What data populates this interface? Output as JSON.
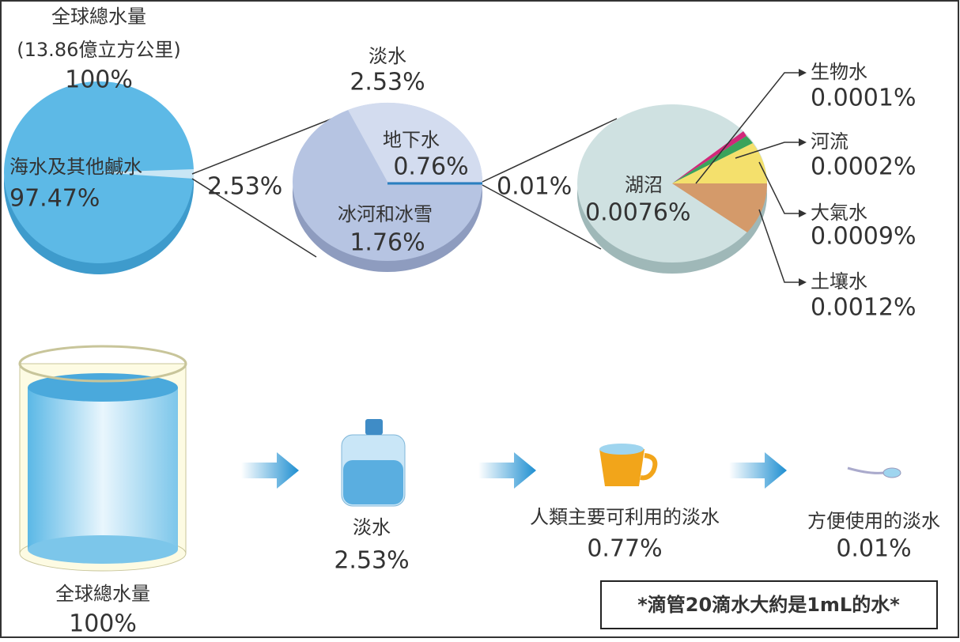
{
  "ocean_pie": {
    "title": "全球總水量",
    "subtitle": "(13.86億立方公里)",
    "total": "100%",
    "slice_label": "海水及其他鹹水",
    "slice_value": "97.47%"
  },
  "link1": "2.53%",
  "freshwater_pie": {
    "title": "淡水",
    "total": "2.53%",
    "groundwater_label": "地下水",
    "groundwater_value": "0.76%",
    "glacier_label": "冰河和冰雪",
    "glacier_value": "1.76%"
  },
  "link2": "0.01%",
  "surface_pie": {
    "lake_label": "湖沼",
    "lake_value": "0.0076%",
    "callouts": [
      {
        "label": "生物水",
        "value": "0.0001%"
      },
      {
        "label": "河流",
        "value": "0.0002%"
      },
      {
        "label": "大氣水",
        "value": "0.0009%"
      },
      {
        "label": "土壤水",
        "value": "0.0012%"
      }
    ]
  },
  "bottom": [
    {
      "label": "全球總水量",
      "value": "100%"
    },
    {
      "label": "淡水",
      "value": "2.53%"
    },
    {
      "label": "人類主要可利用的淡水",
      "value": "0.77%"
    },
    {
      "label": "方便使用的淡水",
      "value": "0.01%"
    }
  ],
  "note": "*滴管20滴水大約是1mL的水*"
}
